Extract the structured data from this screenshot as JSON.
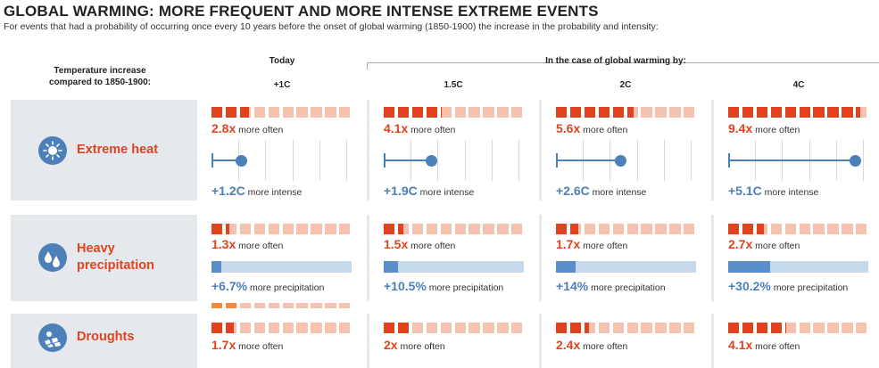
{
  "title": "GLOBAL WARMING: MORE FREQUENT AND MORE INTENSE EXTREME EVENTS",
  "subtitle": "For events that had a probability of occurring once every 10 years before the onset of global warming (1850-1900) the increase in the probability and intensity:",
  "header": {
    "row_label": [
      "Temperature increase",
      "compared to 1850-1900:"
    ],
    "today": "Today",
    "scenario_group": "In the case of global warming by:",
    "columns": [
      "+1C",
      "1.5C",
      "2C",
      "4C"
    ]
  },
  "colors": {
    "accent_red": "#e2431e",
    "square_light": "#f5c2b0",
    "blue": "#4d7fb8",
    "bar_light": "#c6d8ec",
    "bar_fill": "#5a8ecb",
    "band": "#e5e9ed"
  },
  "rows": [
    {
      "label": "Extreme heat",
      "icon": "sun-icon"
    },
    {
      "label": [
        "Heavy",
        "precipitation"
      ],
      "icon": "raindrops-icon"
    },
    {
      "label": "Droughts",
      "icon": "cracked-earth-icon"
    }
  ],
  "chart_data": {
    "type": "table",
    "columns": [
      "+1C",
      "1.5C",
      "2C",
      "4C"
    ],
    "frequency_scale_squares": 10,
    "series": [
      {
        "name": "Extreme heat",
        "frequency": [
          2.8,
          4.1,
          5.6,
          9.4
        ],
        "frequency_labels": [
          "2.8x",
          "4.1x",
          "5.6x",
          "9.4x"
        ],
        "frequency_suffix": "more often",
        "intensity": [
          1.2,
          1.9,
          2.6,
          5.1
        ],
        "intensity_max": 5.6,
        "intensity_labels": [
          "+1.2C",
          "+1.9C",
          "+2.6C",
          "+5.1C"
        ],
        "intensity_suffix": "more intense"
      },
      {
        "name": "Heavy precipitation",
        "frequency": [
          1.3,
          1.5,
          1.7,
          2.7
        ],
        "frequency_labels": [
          "1.3x",
          "1.5x",
          "1.7x",
          "2.7x"
        ],
        "frequency_suffix": "more often",
        "intensity": [
          6.7,
          10.5,
          14,
          30.2
        ],
        "intensity_max": 100,
        "intensity_labels": [
          "+6.7%",
          "+10.5%",
          "+14%",
          "+30.2%"
        ],
        "intensity_suffix": "more precipitation"
      },
      {
        "name": "Droughts",
        "frequency": [
          1.7,
          2,
          2.4,
          4.1
        ],
        "frequency_labels": [
          "1.7x",
          "2x",
          "2.4x",
          "4.1x"
        ],
        "frequency_suffix": "more often"
      }
    ]
  }
}
